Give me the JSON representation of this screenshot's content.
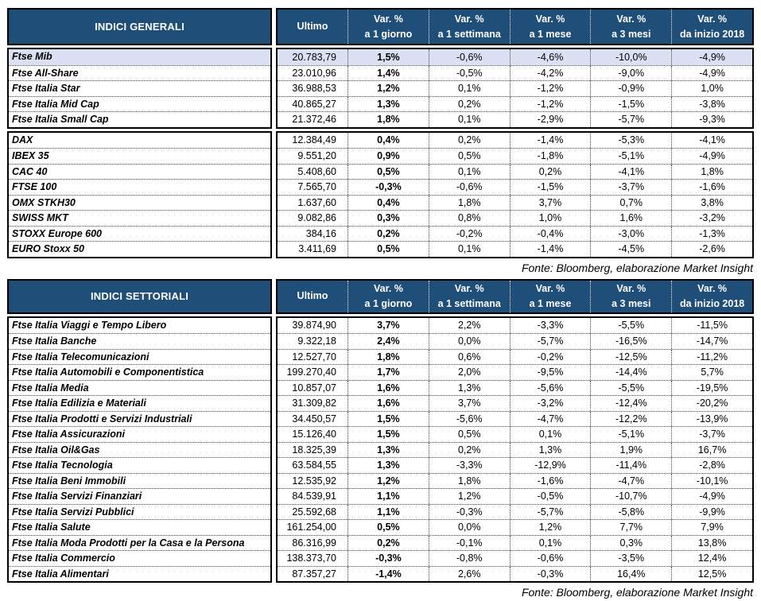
{
  "colors": {
    "header_bg": "#1F4E79",
    "header_text": "#FFFFFF",
    "highlight_row_bg": "#D9E1F2",
    "border": "#000000",
    "page_bg": "#FFFFFF"
  },
  "columns": [
    {
      "id": "ultimo",
      "line1": "Ultimo",
      "line2": ""
    },
    {
      "id": "var-1-giorno",
      "line1": "Var. %",
      "line2": "a 1 giorno"
    },
    {
      "id": "var-1-settimana",
      "line1": "Var. %",
      "line2": "a 1 settimana"
    },
    {
      "id": "var-1-mese",
      "line1": "Var. %",
      "line2": "a 1 mese"
    },
    {
      "id": "var-3-mesi",
      "line1": "Var. %",
      "line2": "a 3 mesi"
    },
    {
      "id": "var-inizio-2018",
      "line1": "Var. %",
      "line2": "da inizio 2018"
    }
  ],
  "tables": [
    {
      "title": "INDICI GENERALI",
      "source": "Fonte: Bloomberg, elaborazione Market Insight",
      "groups": [
        {
          "rows": [
            {
              "label": "Ftse Mib",
              "ultimo": "20.783,79",
              "vars": [
                "1,5%",
                "-0,6%",
                "-4,6%",
                "-10,0%",
                "-4,9%"
              ],
              "highlight": true
            },
            {
              "label": "Ftse All-Share",
              "ultimo": "23.010,96",
              "vars": [
                "1,4%",
                "-0,5%",
                "-4,2%",
                "-9,0%",
                "-4,9%"
              ]
            },
            {
              "label": "Ftse Italia Star",
              "ultimo": "36.988,53",
              "vars": [
                "1,2%",
                "0,1%",
                "-1,2%",
                "-0,9%",
                "1,0%"
              ]
            },
            {
              "label": "Ftse Italia Mid Cap",
              "ultimo": "40.865,27",
              "vars": [
                "1,3%",
                "0,2%",
                "-1,2%",
                "-1,5%",
                "-3,8%"
              ]
            },
            {
              "label": "Ftse Italia Small Cap",
              "ultimo": "21.372,46",
              "vars": [
                "1,8%",
                "0,1%",
                "-2,9%",
                "-5,7%",
                "-9,3%"
              ]
            }
          ]
        },
        {
          "rows": [
            {
              "label": "DAX",
              "ultimo": "12.384,49",
              "vars": [
                "0,4%",
                "0,2%",
                "-1,4%",
                "-5,3%",
                "-4,1%"
              ]
            },
            {
              "label": "IBEX 35",
              "ultimo": "9.551,20",
              "vars": [
                "0,9%",
                "0,5%",
                "-1,8%",
                "-5,1%",
                "-4,9%"
              ]
            },
            {
              "label": "CAC 40",
              "ultimo": "5.408,60",
              "vars": [
                "0,5%",
                "0,1%",
                "0,2%",
                "-4,1%",
                "1,8%"
              ]
            },
            {
              "label": "FTSE 100",
              "ultimo": "7.565,70",
              "vars": [
                "-0,3%",
                "-0,6%",
                "-1,5%",
                "-3,7%",
                "-1,6%"
              ]
            },
            {
              "label": "OMX STKH30",
              "ultimo": "1.637,60",
              "vars": [
                "0,4%",
                "1,8%",
                "3,7%",
                "0,7%",
                "3,8%"
              ]
            },
            {
              "label": "SWISS MKT",
              "ultimo": "9.082,86",
              "vars": [
                "0,3%",
                "0,8%",
                "1,0%",
                "1,6%",
                "-3,2%"
              ]
            },
            {
              "label": "STOXX Europe 600",
              "ultimo": "384,16",
              "vars": [
                "0,2%",
                "-0,2%",
                "-0,4%",
                "-3,0%",
                "-1,3%"
              ]
            },
            {
              "label": "EURO Stoxx 50",
              "ultimo": "3.411,69",
              "vars": [
                "0,5%",
                "0,1%",
                "-1,4%",
                "-4,5%",
                "-2,6%"
              ]
            }
          ]
        }
      ]
    },
    {
      "title": "INDICI SETTORIALI",
      "source": "Fonte: Bloomberg, elaborazione Market Insight",
      "groups": [
        {
          "rows": [
            {
              "label": "Ftse Italia Viaggi e Tempo Libero",
              "ultimo": "39.874,90",
              "vars": [
                "3,7%",
                "2,2%",
                "-3,3%",
                "-5,5%",
                "-11,5%"
              ]
            },
            {
              "label": "Ftse Italia Banche",
              "ultimo": "9.322,18",
              "vars": [
                "2,4%",
                "0,0%",
                "-5,7%",
                "-16,5%",
                "-14,7%"
              ]
            },
            {
              "label": "Ftse Italia Telecomunicazioni",
              "ultimo": "12.527,70",
              "vars": [
                "1,8%",
                "0,6%",
                "-0,2%",
                "-12,5%",
                "-11,2%"
              ]
            },
            {
              "label": "Ftse Italia Automobili e Componentistica",
              "ultimo": "199.270,40",
              "vars": [
                "1,7%",
                "2,0%",
                "-9,5%",
                "-14,4%",
                "5,7%"
              ]
            },
            {
              "label": "Ftse Italia Media",
              "ultimo": "10.857,07",
              "vars": [
                "1,6%",
                "1,3%",
                "-5,6%",
                "-5,5%",
                "-19,5%"
              ]
            },
            {
              "label": "Ftse Italia Edilizia e Materiali",
              "ultimo": "31.309,82",
              "vars": [
                "1,6%",
                "3,7%",
                "-3,2%",
                "-12,4%",
                "-20,2%"
              ]
            },
            {
              "label": "Ftse Italia Prodotti e Servizi Industriali",
              "ultimo": "34.450,57",
              "vars": [
                "1,5%",
                "-5,6%",
                "-4,7%",
                "-12,2%",
                "-13,9%"
              ]
            },
            {
              "label": "Ftse Italia Assicurazioni",
              "ultimo": "15.126,40",
              "vars": [
                "1,5%",
                "0,5%",
                "0,1%",
                "-5,1%",
                "-3,7%"
              ]
            },
            {
              "label": "Ftse Italia Oil&Gas",
              "ultimo": "18.325,39",
              "vars": [
                "1,3%",
                "0,2%",
                "1,3%",
                "1,9%",
                "16,7%"
              ]
            },
            {
              "label": "Ftse Italia Tecnologia",
              "ultimo": "63.584,55",
              "vars": [
                "1,3%",
                "-3,3%",
                "-12,9%",
                "-11,4%",
                "-2,8%"
              ]
            },
            {
              "label": "Ftse Italia Beni Immobili",
              "ultimo": "12.535,92",
              "vars": [
                "1,2%",
                "1,8%",
                "-1,6%",
                "-4,7%",
                "-10,1%"
              ]
            },
            {
              "label": "Ftse Italia Servizi Finanziari",
              "ultimo": "84.539,91",
              "vars": [
                "1,1%",
                "1,2%",
                "-0,5%",
                "-10,7%",
                "-4,9%"
              ]
            },
            {
              "label": "Ftse Italia Servizi Pubblici",
              "ultimo": "25.592,68",
              "vars": [
                "1,1%",
                "-0,3%",
                "-5,7%",
                "-5,8%",
                "-9,9%"
              ]
            },
            {
              "label": "Ftse Italia Salute",
              "ultimo": "161.254,00",
              "vars": [
                "0,5%",
                "0,0%",
                "1,2%",
                "7,7%",
                "7,9%"
              ]
            },
            {
              "label": "Ftse Italia Moda Prodotti per la Casa e la Persona",
              "ultimo": "86.316,99",
              "vars": [
                "0,2%",
                "-0,1%",
                "0,1%",
                "0,3%",
                "13,8%"
              ]
            },
            {
              "label": "Ftse Italia Commercio",
              "ultimo": "138.373,70",
              "vars": [
                "-0,3%",
                "-0,8%",
                "-0,6%",
                "-3,5%",
                "12,4%"
              ]
            },
            {
              "label": "Ftse Italia Alimentari",
              "ultimo": "87.357,27",
              "vars": [
                "-1,4%",
                "2,6%",
                "-0,3%",
                "16,4%",
                "12,5%"
              ]
            }
          ]
        }
      ]
    }
  ]
}
